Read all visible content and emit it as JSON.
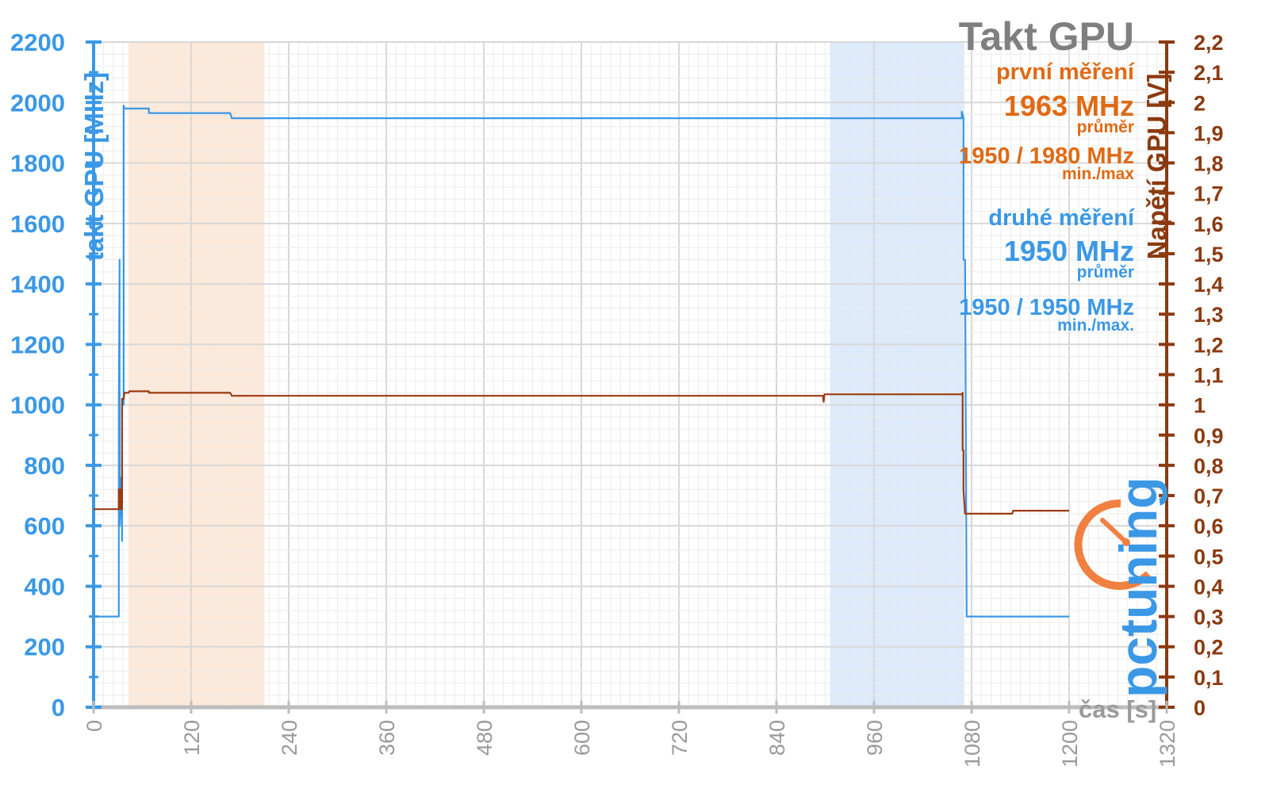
{
  "chart_data": {
    "type": "line",
    "title": "Takt GPU",
    "xlabel": "čas [s]",
    "ylabel_left": "takt GPU [MHz]",
    "ylabel_right": "Napětí GPU [V]",
    "xlim": [
      0,
      1320
    ],
    "ylim_left": [
      0,
      2200
    ],
    "ylim_right": [
      0,
      2.2
    ],
    "x_ticks": [
      "0",
      "120",
      "240",
      "360",
      "480",
      "600",
      "720",
      "840",
      "960",
      "1080",
      "1200",
      "1320"
    ],
    "y_ticks_left": [
      "0",
      "200",
      "400",
      "600",
      "800",
      "1000",
      "1200",
      "1400",
      "1600",
      "1800",
      "2000",
      "2200"
    ],
    "y_ticks_right": [
      "0",
      "0,1",
      "0,2",
      "0,3",
      "0,4",
      "0,5",
      "0,6",
      "0,7",
      "0,8",
      "0,9",
      "1",
      "1,1",
      "1,2",
      "1,3",
      "1,4",
      "1,5",
      "1,6",
      "1,7",
      "1,8",
      "1,9",
      "2",
      "2,1",
      "2,2"
    ],
    "grid": true,
    "shaded_regions": [
      {
        "x": [
          43,
          210
        ],
        "color": "#fde9d9"
      },
      {
        "x": [
          906,
          1071
        ],
        "color": "#dceafb"
      }
    ],
    "series": [
      {
        "name": "takt GPU",
        "axis": "left",
        "color": "#3a98e6",
        "x": [
          0,
          31,
          31,
          32,
          32,
          34,
          35,
          35,
          37,
          37,
          38,
          68,
          68,
          168,
          170,
          1068,
          1068,
          1070,
          1070,
          1072,
          1074,
          1200
        ],
        "y": [
          300,
          300,
          1000,
          1480,
          600,
          760,
          550,
          1000,
          1000,
          1990,
          1980,
          1980,
          1965,
          1965,
          1948,
          1948,
          1970,
          1950,
          1480,
          1480,
          300,
          300
        ]
      },
      {
        "name": "Napětí GPU",
        "axis": "right",
        "color": "#9c3a12",
        "x": [
          0,
          31,
          31,
          33,
          33,
          35,
          35,
          37,
          38,
          43,
          44,
          68,
          68,
          168,
          170,
          897,
          898,
          899,
          1068,
          1069,
          1069,
          1070,
          1070,
          1072,
          1130,
          1131,
          1200
        ],
        "y": [
          0.655,
          0.655,
          0.72,
          0.72,
          0.655,
          0.655,
          1.02,
          1.02,
          1.04,
          1.04,
          1.045,
          1.045,
          1.04,
          1.04,
          1.03,
          1.03,
          1.01,
          1.035,
          1.035,
          1.04,
          0.85,
          0.85,
          0.72,
          0.64,
          0.64,
          0.65,
          0.65
        ]
      }
    ]
  },
  "annotations": {
    "first": {
      "label": "první měření",
      "avg": "1963 MHz",
      "avg_note": "průměr",
      "minmax": "1950 / 1980 MHz",
      "minmax_note": "min./max"
    },
    "second": {
      "label": "druhé měření",
      "avg": "1950 MHz",
      "avg_note": "průměr",
      "minmax": "1950 / 1950 MHz",
      "minmax_note": "min./max."
    }
  },
  "logo": {
    "text": "pctuning",
    "color_main": "#3a98e6",
    "color_accent": "#f08040"
  },
  "colors": {
    "left_axis": "#3a98e6",
    "right_axis": "#8b3a10",
    "grid": "#e3e3e3",
    "x_axis": "#bdbdbd"
  }
}
